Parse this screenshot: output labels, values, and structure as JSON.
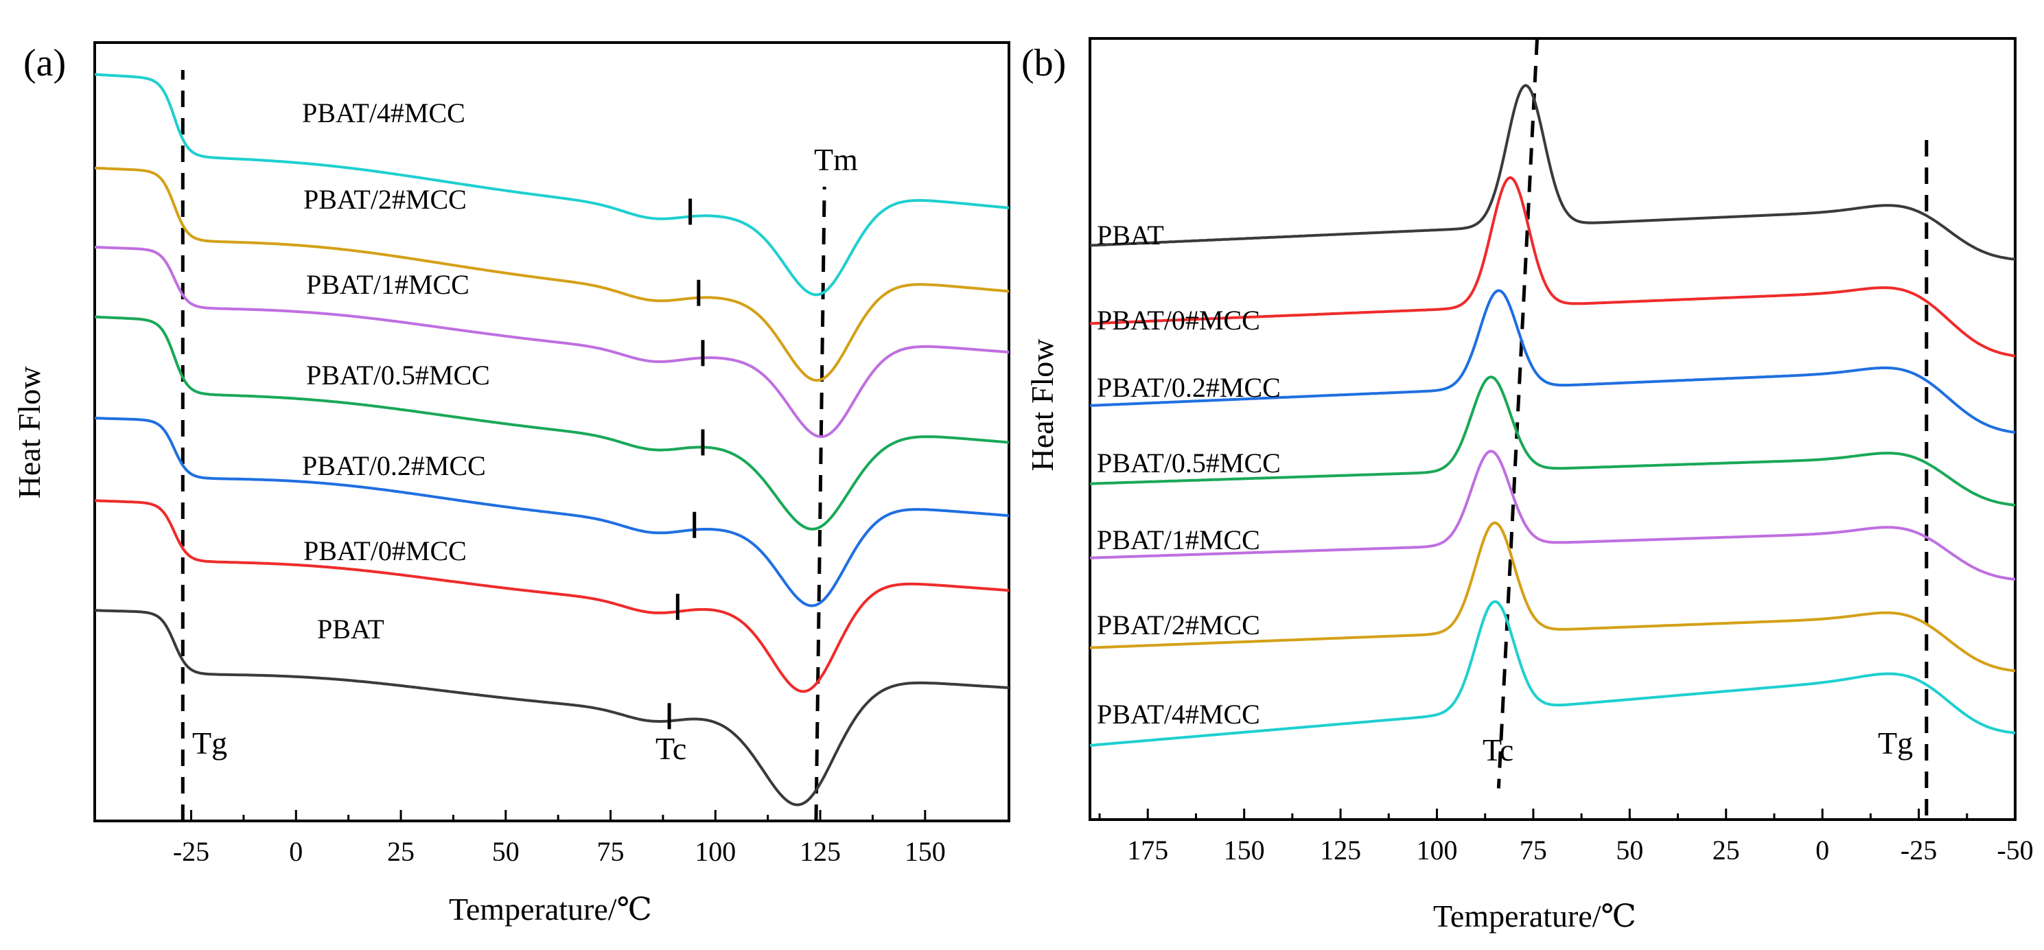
{
  "figure": {
    "panel_a_label": "(a)",
    "panel_b_label": "(b)"
  },
  "chart_data": [
    {
      "panel": "(a)",
      "type": "line",
      "title": "",
      "xlabel": "Temperature/℃",
      "ylabel": "Heat Flow",
      "xlim": [
        -48,
        170
      ],
      "ylim": [
        0,
        100
      ],
      "x_reversed": false,
      "xticks": [
        -25,
        0,
        25,
        50,
        75,
        100,
        125,
        150
      ],
      "xtick_labels": [
        "-25",
        "0",
        "25",
        "50",
        "75",
        "100",
        "125",
        "150"
      ],
      "y_tick_labels_shown": false,
      "markers": {
        "tg": "Tg",
        "tc": "Tc",
        "tm": "Tm"
      },
      "series": [
        {
          "name": "PBAT/4#MCC",
          "color": "#1fcfcf",
          "offset": 94.5,
          "tg_step": 10.0,
          "drift": -0.052,
          "hump": 1.5,
          "tm_x": 125,
          "tm_depth": 10.0,
          "tm_width": 8,
          "recover": 4.5,
          "tc_tick": 94
        },
        {
          "name": "PBAT/2#MCC",
          "color": "#d4a017",
          "offset": 82.5,
          "tg_step": 9.0,
          "drift": -0.048,
          "hump": 1.8,
          "tm_x": 125,
          "tm_depth": 10.5,
          "tm_width": 8,
          "recover": 4.0,
          "tc_tick": 96
        },
        {
          "name": "PBAT/1#MCC",
          "color": "#bf6fe0",
          "offset": 72.5,
          "tg_step": 7.5,
          "drift": -0.042,
          "hump": 1.6,
          "tm_x": 126,
          "tm_depth": 10.0,
          "tm_width": 8,
          "recover": 3.5,
          "tc_tick": 97
        },
        {
          "name": "PBAT/0.5#MCC",
          "color": "#1aa857",
          "offset": 63.5,
          "tg_step": 9.5,
          "drift": -0.045,
          "hump": 1.5,
          "tm_x": 124,
          "tm_depth": 10.5,
          "tm_width": 9,
          "recover": 3.5,
          "tc_tick": 97
        },
        {
          "name": "PBAT/0.2#MCC",
          "color": "#1f6fe0",
          "offset": 50.5,
          "tg_step": 7.5,
          "drift": -0.042,
          "hump": 1.8,
          "tm_x": 124,
          "tm_depth": 10.0,
          "tm_width": 8,
          "recover": 4.5,
          "tc_tick": 95
        },
        {
          "name": "PBAT/0#MCC",
          "color": "#ef2b2b",
          "offset": 40.0,
          "tg_step": 7.5,
          "drift": -0.04,
          "hump": 1.5,
          "tm_x": 122,
          "tm_depth": 11.0,
          "tm_width": 8,
          "recover": 5.0,
          "tc_tick": 91
        },
        {
          "name": "PBAT",
          "color": "#3a3a3a",
          "offset": 26.0,
          "tg_step": 8.0,
          "drift": -0.035,
          "hump": 1.5,
          "tm_x": 121,
          "tm_depth": 12.0,
          "tm_width": 9,
          "recover": 6.0,
          "tc_tick": 89
        }
      ],
      "dashed_lines": [
        {
          "name": "Tg",
          "x1": -27,
          "x2": -27
        },
        {
          "name": "Tm",
          "x1": 124,
          "x2": 126
        }
      ]
    },
    {
      "panel": "(b)",
      "type": "line",
      "title": "",
      "xlabel": "Temperature/℃",
      "ylabel": "Heat Flow",
      "xlim": [
        190,
        -50
      ],
      "ylim": [
        0,
        100
      ],
      "x_reversed": true,
      "xticks": [
        175,
        150,
        125,
        100,
        75,
        50,
        25,
        0,
        -25,
        -50
      ],
      "xtick_labels": [
        "175",
        "150",
        "125",
        "100",
        "75",
        "50",
        "25",
        "0",
        "-25",
        "-50"
      ],
      "y_tick_labels_shown": false,
      "markers": {
        "tc": "Tc",
        "tg": "Tg"
      },
      "series": [
        {
          "name": "PBAT",
          "color": "#3a3a3a",
          "base": 73.5,
          "slope": 0.022,
          "peak_x": 77,
          "peak_h": 18.0,
          "peak_w": 4.8,
          "tg_drop": 7.5
        },
        {
          "name": "PBAT/0#MCC",
          "color": "#ef2b2b",
          "base": 63.5,
          "slope": 0.02,
          "peak_x": 81,
          "peak_h": 16.5,
          "peak_w": 4.8,
          "tg_drop": 9.5
        },
        {
          "name": "PBAT/0.2#MCC",
          "color": "#1f6fe0",
          "base": 53.0,
          "slope": 0.021,
          "peak_x": 84,
          "peak_h": 12.5,
          "peak_w": 4.9,
          "tg_drop": 9.0
        },
        {
          "name": "PBAT/0.5#MCC",
          "color": "#1aa857",
          "base": 43.0,
          "slope": 0.016,
          "peak_x": 86,
          "peak_h": 12.0,
          "peak_w": 5.0,
          "tg_drop": 7.0
        },
        {
          "name": "PBAT/1#MCC",
          "color": "#bf6fe0",
          "base": 33.5,
          "slope": 0.016,
          "peak_x": 86,
          "peak_h": 12.0,
          "peak_w": 5.0,
          "tg_drop": 7.0
        },
        {
          "name": "PBAT/2#MCC",
          "color": "#d4a017",
          "base": 22.0,
          "slope": 0.019,
          "peak_x": 85,
          "peak_h": 14.0,
          "peak_w": 5.0,
          "tg_drop": 8.0
        },
        {
          "name": "PBAT/4#MCC",
          "color": "#1fcfcf",
          "base": 9.5,
          "slope": 0.042,
          "peak_x": 85,
          "peak_h": 14.0,
          "peak_w": 5.0,
          "tg_drop": 9.0
        }
      ],
      "dashed_lines": [
        {
          "name": "Tc",
          "x1": 74,
          "y1": 100,
          "x2": 84,
          "y2": 4
        },
        {
          "name": "Tg",
          "x1": -27,
          "y1": 87,
          "x2": -27,
          "y2": 0
        }
      ]
    }
  ]
}
